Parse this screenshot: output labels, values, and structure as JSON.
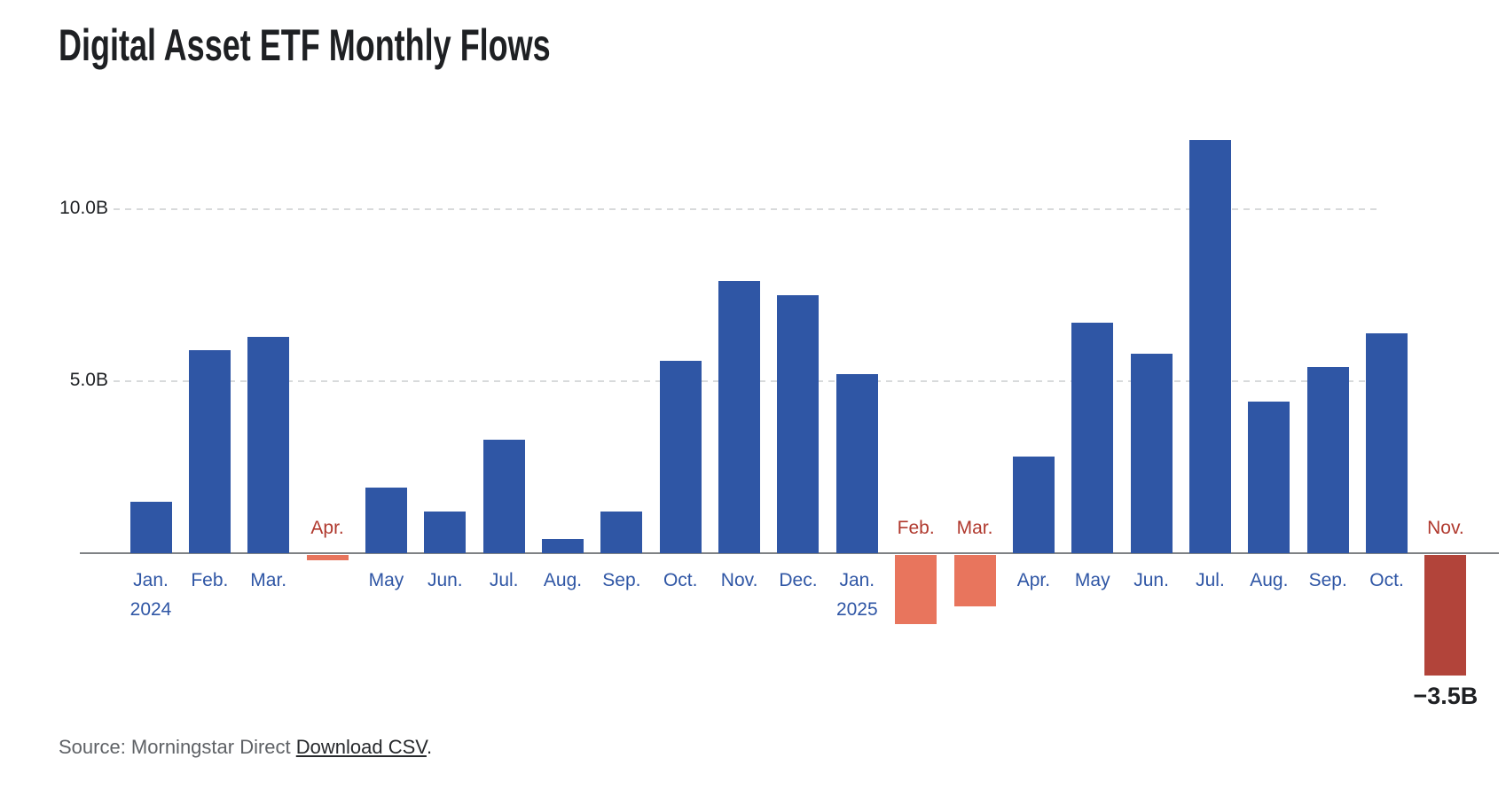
{
  "title": "Digital Asset ETF Monthly Flows",
  "source": {
    "prefix": "Source: Morningstar Direct ",
    "link_label": "Download CSV",
    "suffix": "."
  },
  "colors": {
    "positive_bar": "#2f56a5",
    "negative_bar": "#e8755d",
    "latest_negative_bar": "#b2443a",
    "positive_label_text": "#2f56a5",
    "negative_label_text": "#b0392e",
    "axis_line": "#7f8285",
    "gridline": "#d8dadb",
    "dark_text": "#1e2023",
    "source_text": "#5f6266"
  },
  "chart_data": {
    "type": "bar",
    "title": "Digital Asset ETF Monthly Flows",
    "unit": "USD billions (B)",
    "categories": [
      "Jan. 2024",
      "Feb.",
      "Mar.",
      "Apr.",
      "May",
      "Jun.",
      "Jul.",
      "Aug.",
      "Sep.",
      "Oct.",
      "Nov.",
      "Dec.",
      "Jan. 2025",
      "Feb.",
      "Mar.",
      "Apr.",
      "May",
      "Jun.",
      "Jul.",
      "Aug.",
      "Sep.",
      "Oct.",
      "Nov."
    ],
    "values": [
      1.5,
      5.9,
      6.3,
      -0.15,
      1.9,
      1.2,
      3.3,
      0.4,
      1.2,
      5.6,
      7.9,
      7.5,
      5.2,
      -2.0,
      -1.5,
      2.8,
      6.7,
      5.8,
      12.0,
      4.4,
      5.4,
      6.4,
      -3.5
    ],
    "ylim": [
      -4.2,
      12.6
    ],
    "y_ticks": [
      {
        "value": 5,
        "label": "5.0B"
      },
      {
        "value": 10,
        "label": "10.0B"
      }
    ],
    "grid": "horizontal dashed lines at y ticks",
    "legend": "none",
    "positive_color": "#2f56a5",
    "negative_color": "#e8755d",
    "emphasis_index": 22,
    "emphasis_color": "#b2443a",
    "annotations": [
      {
        "index": 22,
        "text": "−3.5B"
      }
    ]
  }
}
